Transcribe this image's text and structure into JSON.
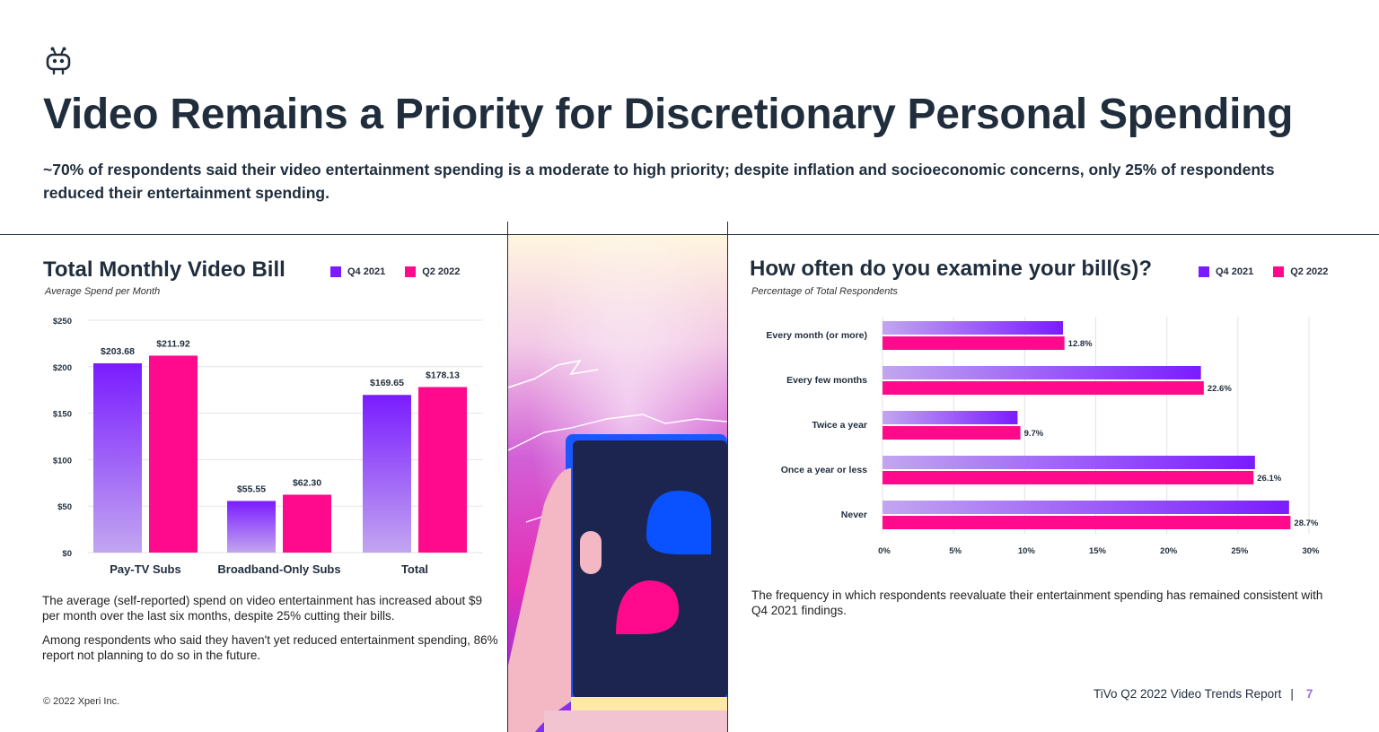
{
  "header": {
    "title": "Video Remains a Priority for Discretionary Personal Spending",
    "subtitle": "~70% of respondents said their video entertainment spending is a moderate to high priority; despite inflation and socioeconomic concerns, only 25% of respondents reduced their entertainment spending."
  },
  "colors": {
    "q4_2021": "#7a1cff",
    "q2_2022": "#ff0a8c",
    "q4_2021_light": "#c2a6f0"
  },
  "chart_data": [
    {
      "type": "bar",
      "title": "Total Monthly Video Bill",
      "subtitle": "Average Spend per Month",
      "categories": [
        "Pay-TV Subs",
        "Broadband-Only Subs",
        "Total"
      ],
      "series": [
        {
          "name": "Q4 2021",
          "values": [
            203.68,
            55.55,
            169.65
          ]
        },
        {
          "name": "Q2 2022",
          "values": [
            211.92,
            62.3,
            178.13
          ]
        }
      ],
      "data_labels": [
        [
          "$203.68",
          "$55.55",
          "$169.65"
        ],
        [
          "$211.92",
          "$62.30",
          "$178.13"
        ]
      ],
      "ylim": [
        0,
        250
      ],
      "y_ticks": [
        0,
        50,
        100,
        150,
        200,
        250
      ],
      "y_tick_labels": [
        "$0",
        "$50",
        "$100",
        "$150",
        "$200",
        "$250"
      ],
      "legend": "top-right",
      "grid": true
    },
    {
      "type": "bar",
      "orientation": "horizontal",
      "title": "How often do you examine your bill(s)?",
      "subtitle": "Percentage of Total Respondents",
      "categories": [
        "Every month (or more)",
        "Every few months",
        "Twice a year",
        "Once a year or less",
        "Never"
      ],
      "series": [
        {
          "name": "Q4 2021",
          "values": [
            12.7,
            22.4,
            9.5,
            26.2,
            28.6
          ]
        },
        {
          "name": "Q2 2022",
          "values": [
            12.8,
            22.6,
            9.7,
            26.1,
            28.7
          ]
        }
      ],
      "data_labels": [
        "12.8%",
        "22.6%",
        "9.7%",
        "26.1%",
        "28.7%"
      ],
      "xlim": [
        0,
        30
      ],
      "x_ticks": [
        0,
        5,
        10,
        15,
        20,
        25,
        30
      ],
      "x_tick_labels": [
        "0%",
        "5%",
        "10%",
        "15%",
        "20%",
        "25%",
        "30%"
      ],
      "legend": "top-right",
      "grid": true
    }
  ],
  "left_panel": {
    "paragraph_1": "The average (self-reported) spend on video entertainment has increased about $9 per month over the last six months, despite 25% cutting their bills.",
    "paragraph_2": "Among respondents who said they haven't yet reduced entertainment spending, 86% report not planning to do so in the future."
  },
  "right_panel": {
    "paragraph": "The frequency in which respondents reevaluate their entertainment spending has remained consistent with Q4 2021 findings."
  },
  "footer": {
    "copyright": "© 2022 Xperi Inc.",
    "report": "TiVo Q2 2022 Video Trends Report",
    "separator": "|",
    "page": "7"
  }
}
